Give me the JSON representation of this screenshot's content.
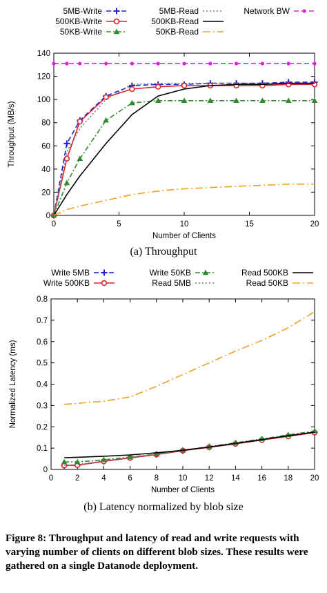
{
  "figure_caption": "Figure 8: Throughput and latency of read and write requests with varying number of clients on different blob sizes. These results were gathered on a single Datanode deployment.",
  "chart_data": [
    {
      "id": "a",
      "type": "line",
      "subcaption": "(a) Throughput",
      "xlabel": "Number of Clients",
      "ylabel": "Throughput (MB/s)",
      "xlim": [
        0,
        20
      ],
      "ylim": [
        0,
        140
      ],
      "xticks": [
        0,
        5,
        10,
        15,
        20
      ],
      "yticks": [
        0,
        20,
        40,
        60,
        80,
        100,
        120,
        140
      ],
      "legend_placement": "top",
      "series": [
        {
          "name": "5MB-Write",
          "color": "#1f1fcf",
          "dash": "dash",
          "marker": "plus",
          "x": [
            0,
            1,
            2,
            4,
            6,
            8,
            10,
            12,
            14,
            16,
            18,
            20
          ],
          "y": [
            0,
            62,
            82,
            103,
            112,
            113,
            113,
            114,
            114,
            114,
            115,
            115
          ]
        },
        {
          "name": "500KB-Write",
          "color": "#e0202a",
          "dash": "solid",
          "marker": "circle",
          "x": [
            0,
            1,
            2,
            4,
            6,
            8,
            10,
            12,
            14,
            16,
            18,
            20
          ],
          "y": [
            0,
            49,
            81,
            102,
            109,
            111,
            112,
            112,
            112,
            112,
            113,
            113
          ]
        },
        {
          "name": "50KB-Write",
          "color": "#2e8b2e",
          "dash": "dashdot",
          "marker": "triangle",
          "x": [
            0,
            1,
            2,
            4,
            6,
            8,
            10,
            12,
            14,
            16,
            18,
            20
          ],
          "y": [
            0,
            28,
            49,
            82,
            97,
            99,
            99,
            99,
            99,
            99,
            99,
            99
          ]
        },
        {
          "name": "5MB-Read",
          "color": "#777777",
          "dash": "dot",
          "marker": "none",
          "x": [
            0,
            1,
            2,
            4,
            6,
            8,
            10,
            12,
            14,
            16,
            18,
            20
          ],
          "y": [
            0,
            55,
            75,
            100,
            113,
            114,
            114,
            114,
            114,
            114,
            114,
            114
          ]
        },
        {
          "name": "500KB-Read",
          "color": "#000000",
          "dash": "solid",
          "marker": "none",
          "x": [
            0,
            1,
            2,
            4,
            6,
            8,
            10,
            12,
            14,
            16,
            18,
            20
          ],
          "y": [
            0,
            18,
            34,
            62,
            87,
            103,
            109,
            112,
            113,
            113,
            114,
            114
          ]
        },
        {
          "name": "50KB-Read",
          "color": "#f0a020",
          "dash": "longdashdot",
          "marker": "none",
          "x": [
            0,
            1,
            2,
            4,
            6,
            8,
            10,
            12,
            14,
            16,
            18,
            20
          ],
          "y": [
            0,
            5,
            8,
            13,
            18,
            21,
            23,
            24,
            25,
            26,
            27,
            27
          ]
        },
        {
          "name": "Network BW",
          "color": "#e020e0",
          "dash": "dash",
          "marker": "dot",
          "x": [
            0,
            1,
            2,
            4,
            6,
            8,
            10,
            12,
            14,
            16,
            18,
            20
          ],
          "y": [
            131,
            131,
            131,
            131,
            131,
            131,
            131,
            131,
            131,
            131,
            131,
            131
          ]
        }
      ]
    },
    {
      "id": "b",
      "type": "line",
      "subcaption": "(b) Latency normalized by blob size",
      "xlabel": "Number of Clients",
      "ylabel": "Normalized Latency (ms)",
      "xlim": [
        0,
        20
      ],
      "ylim": [
        0,
        0.8
      ],
      "xticks": [
        0,
        2,
        4,
        6,
        8,
        10,
        12,
        14,
        16,
        18,
        20
      ],
      "yticks": [
        0,
        0.1,
        0.2,
        0.3,
        0.4,
        0.5,
        0.6,
        0.7,
        0.8
      ],
      "legend_placement": "top",
      "series": [
        {
          "name": "Write 5MB",
          "color": "#1f1fcf",
          "dash": "dash",
          "marker": "plus",
          "x": [
            1,
            2,
            4,
            6,
            8,
            10,
            12,
            14,
            16,
            18,
            20
          ],
          "y": [
            0.018,
            0.02,
            0.038,
            0.055,
            0.07,
            0.088,
            0.105,
            0.122,
            0.14,
            0.158,
            0.175
          ]
        },
        {
          "name": "Write 500KB",
          "color": "#e0202a",
          "dash": "solid",
          "marker": "circle",
          "x": [
            1,
            2,
            4,
            6,
            8,
            10,
            12,
            14,
            16,
            18,
            20
          ],
          "y": [
            0.018,
            0.02,
            0.038,
            0.054,
            0.07,
            0.088,
            0.104,
            0.12,
            0.138,
            0.155,
            0.173
          ]
        },
        {
          "name": "Write 50KB",
          "color": "#2e8b2e",
          "dash": "dashdot",
          "marker": "triangle",
          "x": [
            1,
            2,
            4,
            6,
            8,
            10,
            12,
            14,
            16,
            18,
            20
          ],
          "y": [
            0.035,
            0.035,
            0.045,
            0.058,
            0.072,
            0.09,
            0.107,
            0.125,
            0.143,
            0.162,
            0.18
          ]
        },
        {
          "name": "Read 5MB",
          "color": "#777777",
          "dash": "dot",
          "marker": "none",
          "x": [
            1,
            2,
            4,
            6,
            8,
            10,
            12,
            14,
            16,
            18,
            20
          ],
          "y": [
            0.02,
            0.022,
            0.04,
            0.056,
            0.072,
            0.09,
            0.106,
            0.123,
            0.14,
            0.158,
            0.176
          ]
        },
        {
          "name": "Read 500KB",
          "color": "#000000",
          "dash": "solid",
          "marker": "none",
          "x": [
            1,
            2,
            4,
            6,
            8,
            10,
            12,
            14,
            16,
            18,
            20
          ],
          "y": [
            0.055,
            0.057,
            0.062,
            0.068,
            0.078,
            0.09,
            0.105,
            0.122,
            0.14,
            0.158,
            0.175
          ]
        },
        {
          "name": "Read 50KB",
          "color": "#f0a020",
          "dash": "longdashdot",
          "marker": "none",
          "x": [
            1,
            2,
            4,
            6,
            8,
            10,
            12,
            14,
            16,
            18,
            20
          ],
          "y": [
            0.305,
            0.31,
            0.32,
            0.34,
            0.39,
            0.445,
            0.5,
            0.555,
            0.605,
            0.665,
            0.74
          ]
        }
      ]
    }
  ]
}
